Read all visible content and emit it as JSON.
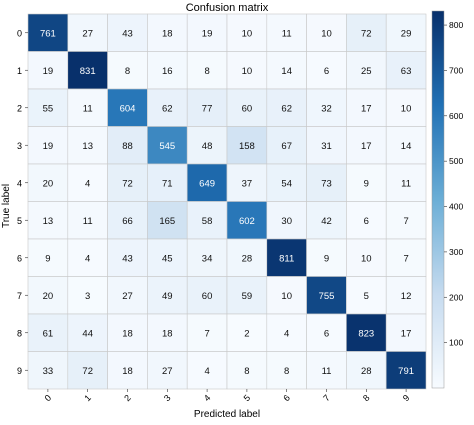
{
  "chart_data": {
    "type": "heatmap",
    "title": "Confusion matrix",
    "xlabel": "Predicted label",
    "ylabel": "True label",
    "x_ticks": [
      "0",
      "1",
      "2",
      "3",
      "4",
      "5",
      "6",
      "7",
      "8",
      "9"
    ],
    "y_ticks": [
      "0",
      "1",
      "2",
      "3",
      "4",
      "5",
      "6",
      "7",
      "8",
      "9"
    ],
    "colormap": "Blues",
    "color_min": "#f7fbff",
    "color_max": "#08306b",
    "vmin": 0,
    "vmax": 831,
    "colorbar_ticks": [
      100,
      200,
      300,
      400,
      500,
      600,
      700,
      800
    ],
    "grid": true,
    "values": [
      [
        761,
        27,
        43,
        18,
        19,
        10,
        11,
        10,
        72,
        29
      ],
      [
        19,
        831,
        8,
        16,
        8,
        10,
        14,
        6,
        25,
        63
      ],
      [
        55,
        11,
        604,
        62,
        77,
        60,
        62,
        32,
        17,
        10
      ],
      [
        19,
        13,
        88,
        545,
        48,
        158,
        67,
        31,
        17,
        14
      ],
      [
        20,
        4,
        72,
        71,
        649,
        37,
        54,
        73,
        9,
        11
      ],
      [
        13,
        11,
        66,
        165,
        58,
        602,
        30,
        42,
        6,
        7
      ],
      [
        9,
        4,
        43,
        45,
        34,
        28,
        811,
        9,
        10,
        7
      ],
      [
        20,
        3,
        27,
        49,
        60,
        59,
        10,
        755,
        5,
        12
      ],
      [
        61,
        44,
        18,
        18,
        7,
        2,
        4,
        6,
        823,
        17
      ],
      [
        33,
        72,
        18,
        27,
        4,
        8,
        8,
        11,
        28,
        791
      ]
    ]
  }
}
